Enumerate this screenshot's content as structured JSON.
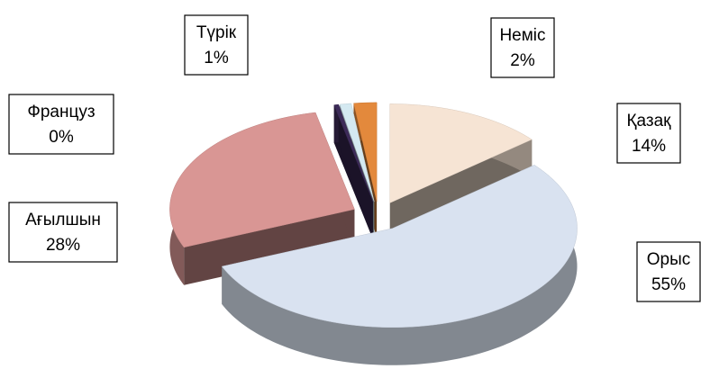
{
  "chart_data": {
    "type": "pie3d",
    "categories": [
      "Қазақ",
      "Орыс",
      "Ағылшын",
      "Француз",
      "Түрік",
      "Неміс"
    ],
    "values": [
      14,
      55,
      28,
      0.4,
      1,
      2
    ],
    "value_labels": [
      "14%",
      "55%",
      "28%",
      "0%",
      "1%",
      "2%"
    ],
    "colors": [
      "#f6e4d4",
      "#d9e2f0",
      "#d99694",
      "#3d2b59",
      "#d4e9f1",
      "#e3893c"
    ]
  }
}
